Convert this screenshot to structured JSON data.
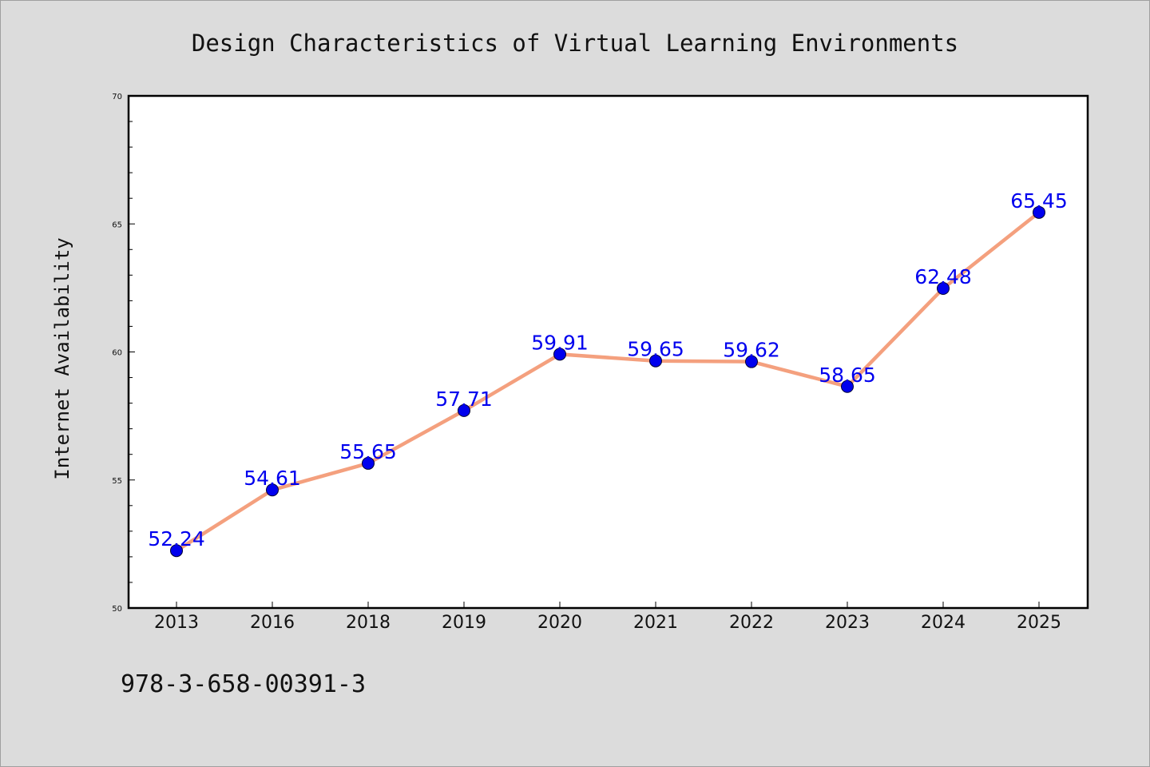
{
  "chart_data": {
    "type": "line",
    "title": "Design Characteristics of Virtual Learning Environments",
    "xlabel": "",
    "ylabel": "Internet Availability",
    "categories": [
      "2013",
      "2016",
      "2018",
      "2019",
      "2020",
      "2021",
      "2022",
      "2023",
      "2024",
      "2025"
    ],
    "series": [
      {
        "values": [
          52.24,
          54.61,
          55.65,
          57.71,
          59.91,
          59.65,
          59.62,
          58.65,
          62.48,
          65.45
        ],
        "labels": [
          "52.24",
          "54.61",
          "55.65",
          "57.71",
          "59.91",
          "59.65",
          "59.62",
          "58.65",
          "62.48",
          "65.45"
        ],
        "line_color": "#f4a07e",
        "marker_color": "#0000ee"
      }
    ],
    "ylim": [
      50,
      70
    ],
    "yticks": [
      "50",
      "55",
      "60",
      "65",
      "70"
    ],
    "grid": false,
    "legend": "none",
    "plot_background": "#ffffff"
  },
  "footer": {
    "isbn": "978-3-658-00391-3"
  }
}
